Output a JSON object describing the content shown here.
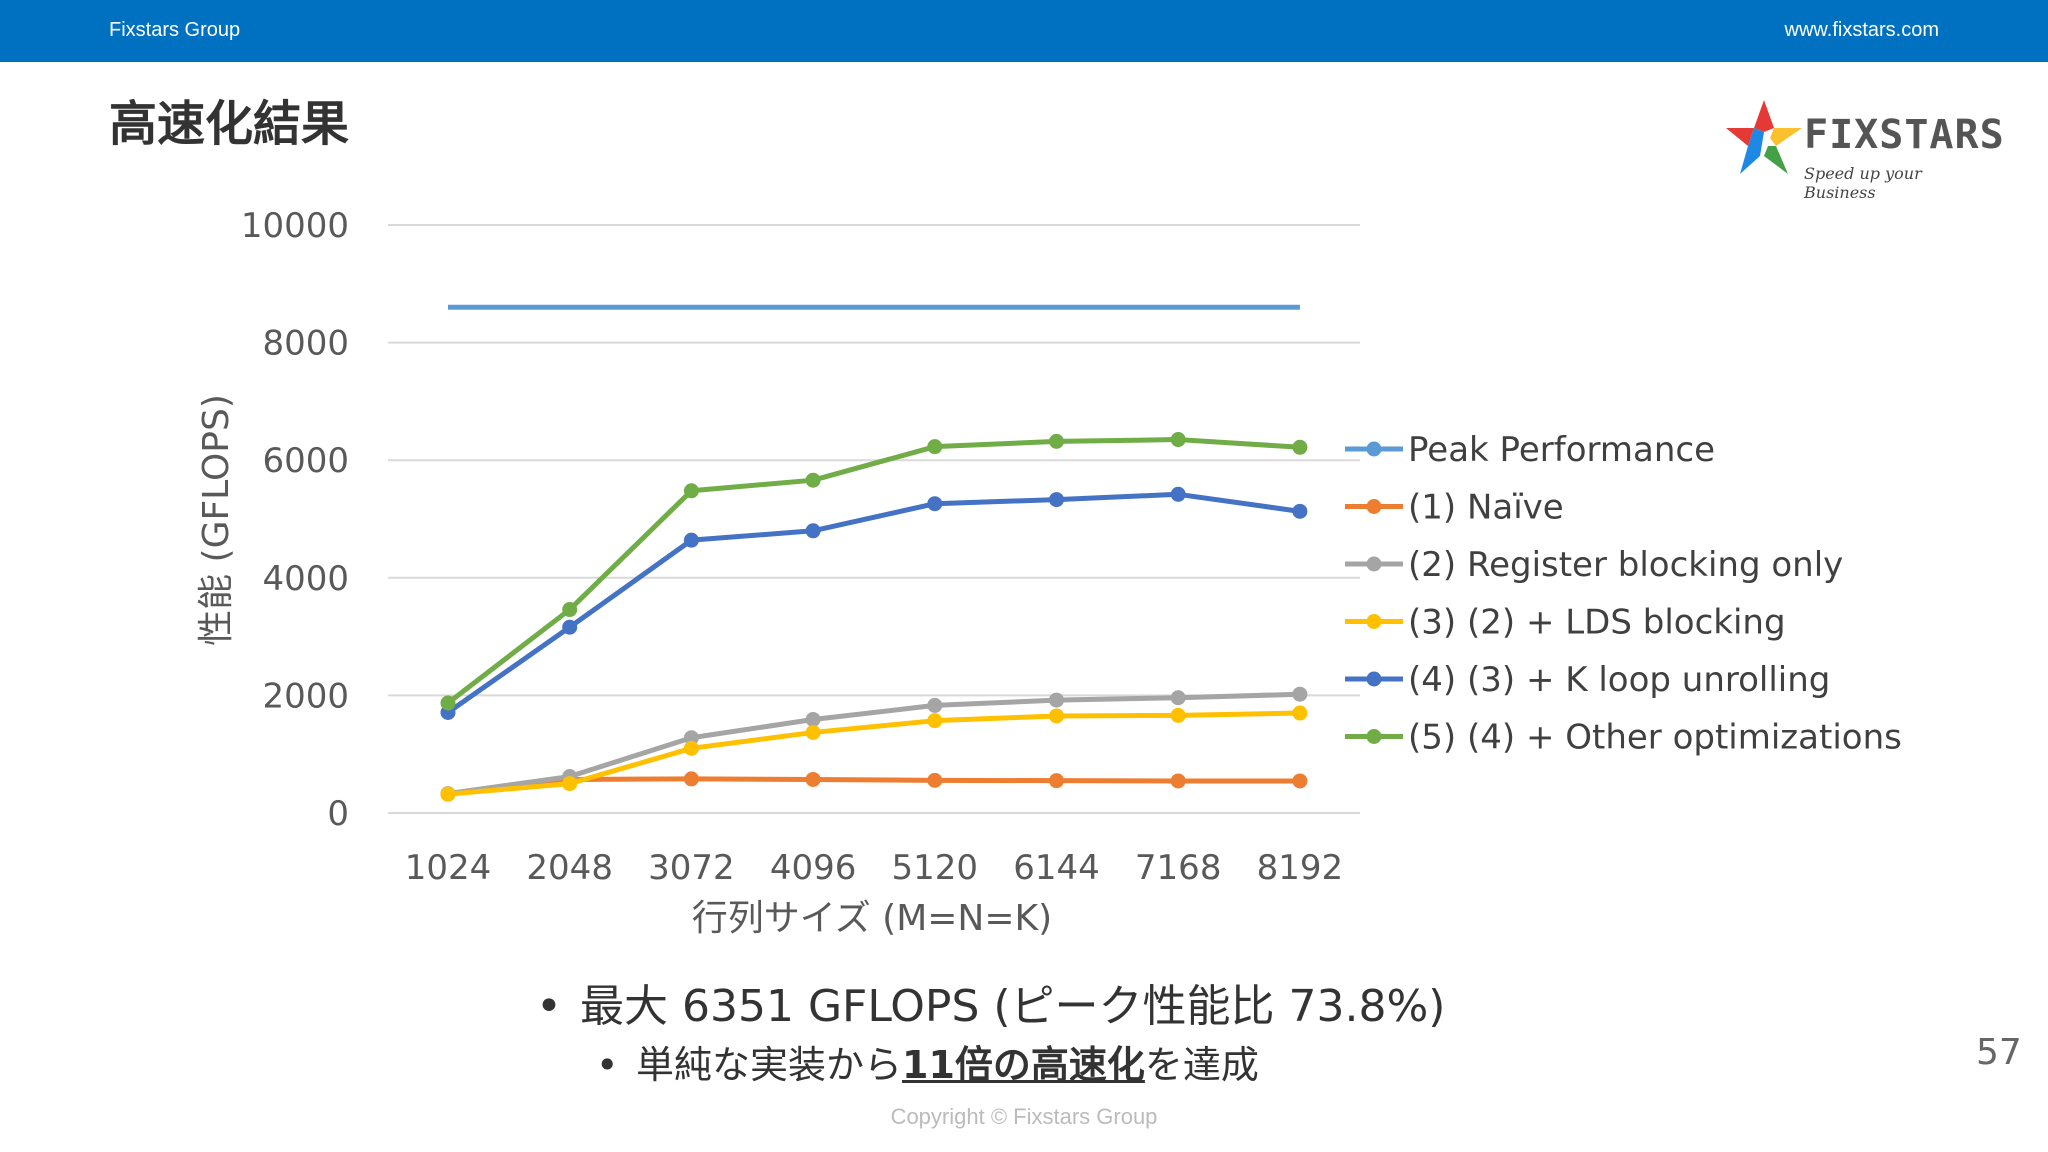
{
  "header": {
    "left": "Fixstars Group",
    "right": "www.fixstars.com"
  },
  "slide": {
    "title": "高速化結果",
    "bullet1": "最大 6351 GFLOPS (ピーク性能比 73.8%)",
    "bullet2_pre": "単純な実装から",
    "bullet2_em": "11倍の高速化",
    "bullet2_post": "を達成",
    "copyright": "Copyright © Fixstars Group",
    "page_number": "57"
  },
  "logo": {
    "word": "FIXSTARS",
    "tagline": "Speed up your Business",
    "star_colors": [
      "#e53935",
      "#fbc02d",
      "#43a047",
      "#1e88e5"
    ]
  },
  "chart_data": {
    "type": "line",
    "categories": [
      "1024",
      "2048",
      "3072",
      "4096",
      "5120",
      "6144",
      "7168",
      "8192"
    ],
    "ylim": [
      0,
      10000
    ],
    "yticks": [
      "0",
      "2000",
      "4000",
      "6000",
      "8000",
      "10000"
    ],
    "xlabel": "行列サイズ (M=N=K)",
    "ylabel": "性能 (GFLOPS)",
    "grid": true,
    "legend_position": "right",
    "series": [
      {
        "name": "Peak Performance",
        "color": "#5b9bd5",
        "markers": false,
        "values": [
          8602,
          8602,
          8602,
          8602,
          8602,
          8602,
          8602,
          8602
        ]
      },
      {
        "name": "(1) Naïve",
        "color": "#ed7d31",
        "markers": true,
        "values": [
          320,
          570,
          580,
          570,
          555,
          550,
          545,
          545
        ]
      },
      {
        "name": "(2) Register blocking only",
        "color": "#a5a5a5",
        "markers": true,
        "values": [
          330,
          620,
          1280,
          1590,
          1830,
          1920,
          1960,
          2020
        ]
      },
      {
        "name": "(3) (2) + LDS blocking",
        "color": "#ffc000",
        "markers": true,
        "values": [
          320,
          500,
          1100,
          1370,
          1570,
          1650,
          1660,
          1700
        ]
      },
      {
        "name": "(4) (3) + K loop unrolling",
        "color": "#4472c4",
        "markers": true,
        "values": [
          1710,
          3160,
          4640,
          4800,
          5260,
          5330,
          5420,
          5130
        ]
      },
      {
        "name": "(5) (4) + Other optimizations",
        "color": "#70ad47",
        "markers": true,
        "values": [
          1870,
          3460,
          5480,
          5660,
          6230,
          6320,
          6351,
          6220
        ]
      }
    ]
  }
}
